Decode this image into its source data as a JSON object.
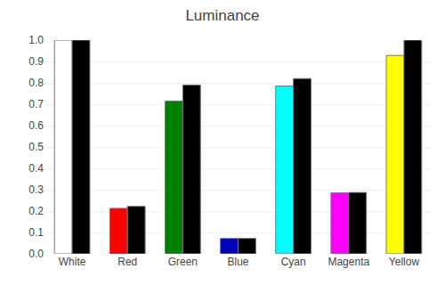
{
  "chart_data": {
    "type": "bar",
    "title": "Luminance",
    "categories": [
      "White",
      "Red",
      "Green",
      "Blue",
      "Cyan",
      "Magenta",
      "Yellow"
    ],
    "series": [
      {
        "colors": [
          "#ffffff",
          "#ff0000",
          "#008000",
          "#0000bb",
          "#00ffff",
          "#ff00ff",
          "#ffff00"
        ],
        "values": [
          1.0,
          0.213,
          0.715,
          0.072,
          0.785,
          0.285,
          0.928
        ]
      },
      {
        "color": "#000000",
        "values": [
          1.0,
          0.222,
          0.79,
          0.072,
          0.82,
          0.287,
          1.0
        ]
      }
    ],
    "ylim": [
      0.0,
      1.0
    ],
    "yticks": [
      {
        "value": 0,
        "label": "0.0"
      },
      0.1,
      0.2,
      0.3,
      0.4,
      0.5,
      0.6,
      0.7,
      0.8,
      0.9,
      {
        "value": 1,
        "label": "1.0"
      }
    ],
    "grid": true
  }
}
